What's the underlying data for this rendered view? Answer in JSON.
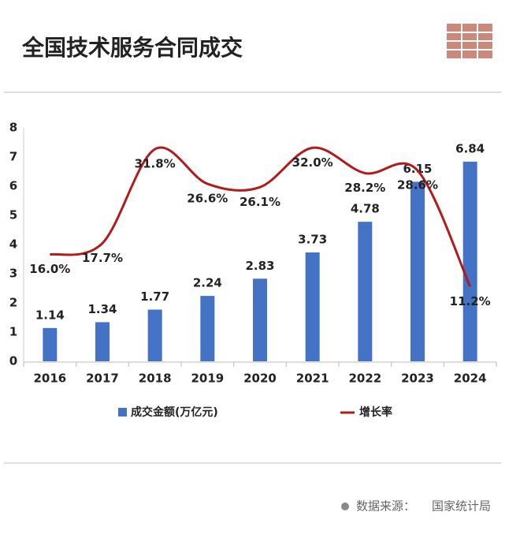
{
  "chart_data": {
    "type": "bar-line",
    "title": "全国技术服务合同成交",
    "categories": [
      "2016",
      "2017",
      "2018",
      "2019",
      "2020",
      "2021",
      "2022",
      "2023",
      "2024"
    ],
    "series": [
      {
        "name": "成交金额(万亿元)",
        "type": "bar",
        "color": "#4472c4",
        "values": [
          1.14,
          1.34,
          1.77,
          2.24,
          2.83,
          3.73,
          4.78,
          6.15,
          6.84
        ]
      },
      {
        "name": "增长率",
        "type": "line",
        "axis": "y2",
        "color": "#b11b1b",
        "values": [
          16.0,
          17.7,
          31.8,
          26.6,
          26.1,
          32.0,
          28.2,
          28.6,
          11.2
        ],
        "value_labels": [
          "16.0%",
          "17.7%",
          "31.8%",
          "26.6%",
          "26.1%",
          "32.0%",
          "28.2%",
          "28.6%",
          "11.2%"
        ]
      }
    ],
    "ylim": [
      0,
      8
    ],
    "yticks": [
      0,
      1,
      2,
      3,
      4,
      5,
      6,
      7,
      8
    ],
    "y2lim": [
      0,
      35
    ],
    "grid": false,
    "source_label": "数据来源：",
    "source": "国家统计局"
  }
}
